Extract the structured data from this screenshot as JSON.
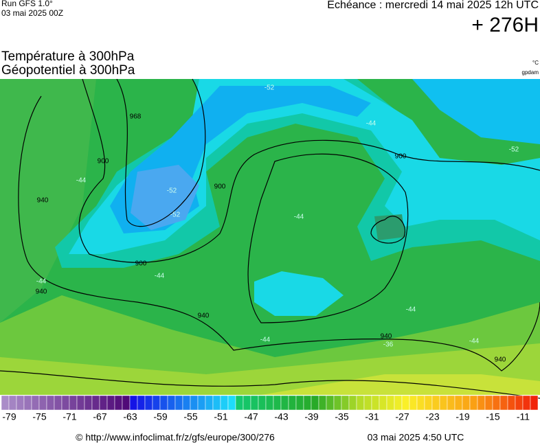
{
  "header": {
    "run": "Run GFS 1.0°",
    "run_date": "03 mai 2025 00Z",
    "valid": "Echéance : mercredi 14 mai 2025 12h UTC",
    "lead": "+ 276H"
  },
  "titles": {
    "temperature": "Température à 300hPa",
    "geopotential": "Géopotentiel à 300hPa",
    "temp_unit": "°C",
    "geo_unit": "gpdam"
  },
  "map": {
    "contour_labels": [
      "968",
      "900",
      "900",
      "900",
      "900",
      "940",
      "940",
      "940",
      "940",
      "940"
    ],
    "temperature_labels": [
      "-52",
      "-52",
      "-52",
      "-52",
      "-44",
      "-44",
      "-44",
      "-44",
      "-44",
      "-44",
      "-44",
      "-44",
      "-36"
    ]
  },
  "colorbar": {
    "ticks": [
      -79,
      -75,
      -71,
      -67,
      -63,
      -59,
      -55,
      -51,
      -47,
      -43,
      -39,
      -35,
      -31,
      -27,
      -23,
      -19,
      -15,
      -11
    ]
  },
  "footer": {
    "source": "© http://www.infoclimat.fr/z/gfs/europe/300/276",
    "generated": "03 mai 2025  4:50 UTC"
  }
}
